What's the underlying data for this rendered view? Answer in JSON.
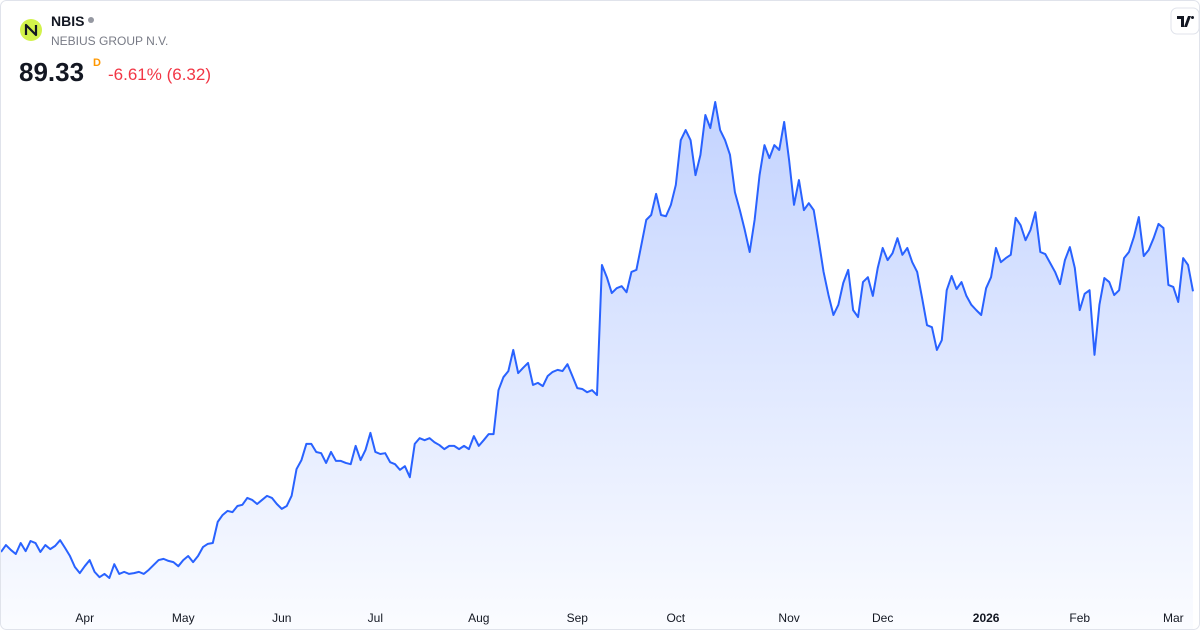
{
  "header": {
    "symbol": "NBIS",
    "name": "NEBIUS GROUP N.V.",
    "price": "89.33",
    "interval": "D",
    "change": "-6.61% (6.32)"
  },
  "chart_data": {
    "type": "area",
    "color": "#2962ff",
    "values": [
      25.2,
      26.9,
      25.7,
      24.7,
      27.4,
      25.4,
      27.9,
      27.4,
      25.2,
      26.9,
      25.9,
      26.7,
      28.1,
      26.2,
      24.2,
      21.5,
      20.0,
      21.7,
      23.2,
      20.3,
      19.0,
      19.8,
      18.8,
      22.2,
      19.8,
      20.3,
      19.8,
      20.0,
      20.3,
      19.8,
      20.8,
      22.0,
      23.2,
      23.5,
      23.0,
      22.7,
      21.7,
      23.2,
      24.2,
      22.7,
      24.2,
      26.4,
      27.2,
      27.4,
      32.6,
      34.3,
      35.3,
      35.0,
      36.5,
      36.8,
      38.5,
      38.0,
      37.0,
      38.0,
      39.0,
      38.5,
      37.0,
      35.8,
      36.5,
      39.0,
      45.6,
      47.8,
      51.8,
      51.8,
      49.8,
      49.5,
      47.1,
      49.8,
      47.6,
      47.6,
      47.1,
      46.8,
      51.3,
      47.8,
      50.3,
      54.5,
      49.8,
      49.3,
      49.5,
      47.3,
      46.8,
      45.4,
      46.3,
      43.6,
      51.8,
      53.2,
      52.7,
      53.2,
      52.2,
      51.5,
      50.5,
      51.3,
      51.3,
      50.5,
      51.3,
      50.5,
      53.7,
      51.3,
      52.7,
      54.2,
      54.2,
      65.0,
      68.2,
      69.7,
      74.9,
      69.2,
      70.5,
      71.7,
      66.3,
      66.8,
      66.0,
      68.5,
      69.5,
      70.0,
      69.7,
      71.4,
      68.5,
      65.5,
      65.3,
      64.5,
      65.0,
      63.8,
      95.8,
      92.8,
      88.9,
      90.1,
      90.6,
      89.1,
      94.1,
      94.6,
      100.7,
      106.9,
      108.1,
      113.3,
      108.1,
      107.8,
      110.6,
      115.5,
      126.5,
      129.0,
      126.5,
      117.9,
      122.9,
      132.7,
      129.5,
      135.9,
      129.0,
      126.5,
      122.9,
      113.7,
      109.3,
      104.4,
      99.0,
      106.9,
      117.9,
      125.3,
      122.1,
      125.3,
      124.1,
      131.0,
      121.6,
      110.6,
      116.7,
      109.3,
      111.0,
      109.3,
      101.9,
      94.1,
      88.4,
      83.5,
      86.0,
      91.4,
      94.6,
      84.7,
      83.0,
      91.6,
      92.8,
      88.2,
      95.1,
      100.0,
      97.0,
      98.7,
      102.4,
      98.3,
      100.0,
      96.5,
      94.1,
      87.7,
      81.0,
      80.5,
      74.9,
      77.3,
      89.6,
      93.1,
      89.9,
      91.6,
      88.2,
      86.0,
      84.7,
      83.5,
      90.1,
      92.8,
      100.0,
      96.5,
      97.5,
      98.3,
      107.4,
      105.6,
      101.9,
      104.4,
      108.8,
      99.0,
      98.5,
      96.3,
      94.1,
      91.1,
      97.0,
      100.2,
      95.1,
      84.7,
      88.7,
      89.6,
      73.7,
      86.0,
      92.6,
      91.6,
      88.4,
      89.6,
      97.5,
      99.0,
      102.7,
      107.6,
      98.0,
      99.5,
      102.4,
      105.9,
      104.9,
      90.9,
      90.4,
      86.7,
      97.5,
      95.8,
      89.33
    ],
    "xlim": [
      0,
      242
    ],
    "ylim": [
      6,
      161
    ],
    "xticks": [
      {
        "value": 17,
        "label": "Apr"
      },
      {
        "value": 37,
        "label": "May"
      },
      {
        "value": 57,
        "label": "Jun"
      },
      {
        "value": 76,
        "label": "Jul"
      },
      {
        "value": 97,
        "label": "Aug"
      },
      {
        "value": 117,
        "label": "Sep"
      },
      {
        "value": 137,
        "label": "Oct"
      },
      {
        "value": 160,
        "label": "Nov"
      },
      {
        "value": 179,
        "label": "Dec"
      },
      {
        "value": 200,
        "label": "2026"
      },
      {
        "value": 219,
        "label": "Feb"
      },
      {
        "value": 238,
        "label": "Mar"
      }
    ]
  }
}
